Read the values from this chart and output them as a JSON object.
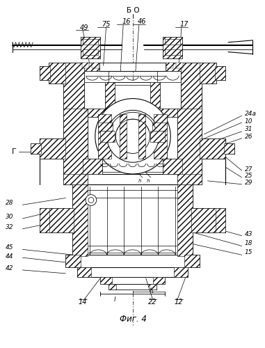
{
  "bg_color": "#ffffff",
  "line_color": "#000000",
  "fig_width": 3.81,
  "fig_height": 5.0,
  "dpi": 100,
  "title": "Фиг. 4",
  "top_label": "Б О",
  "left_label": "Г"
}
